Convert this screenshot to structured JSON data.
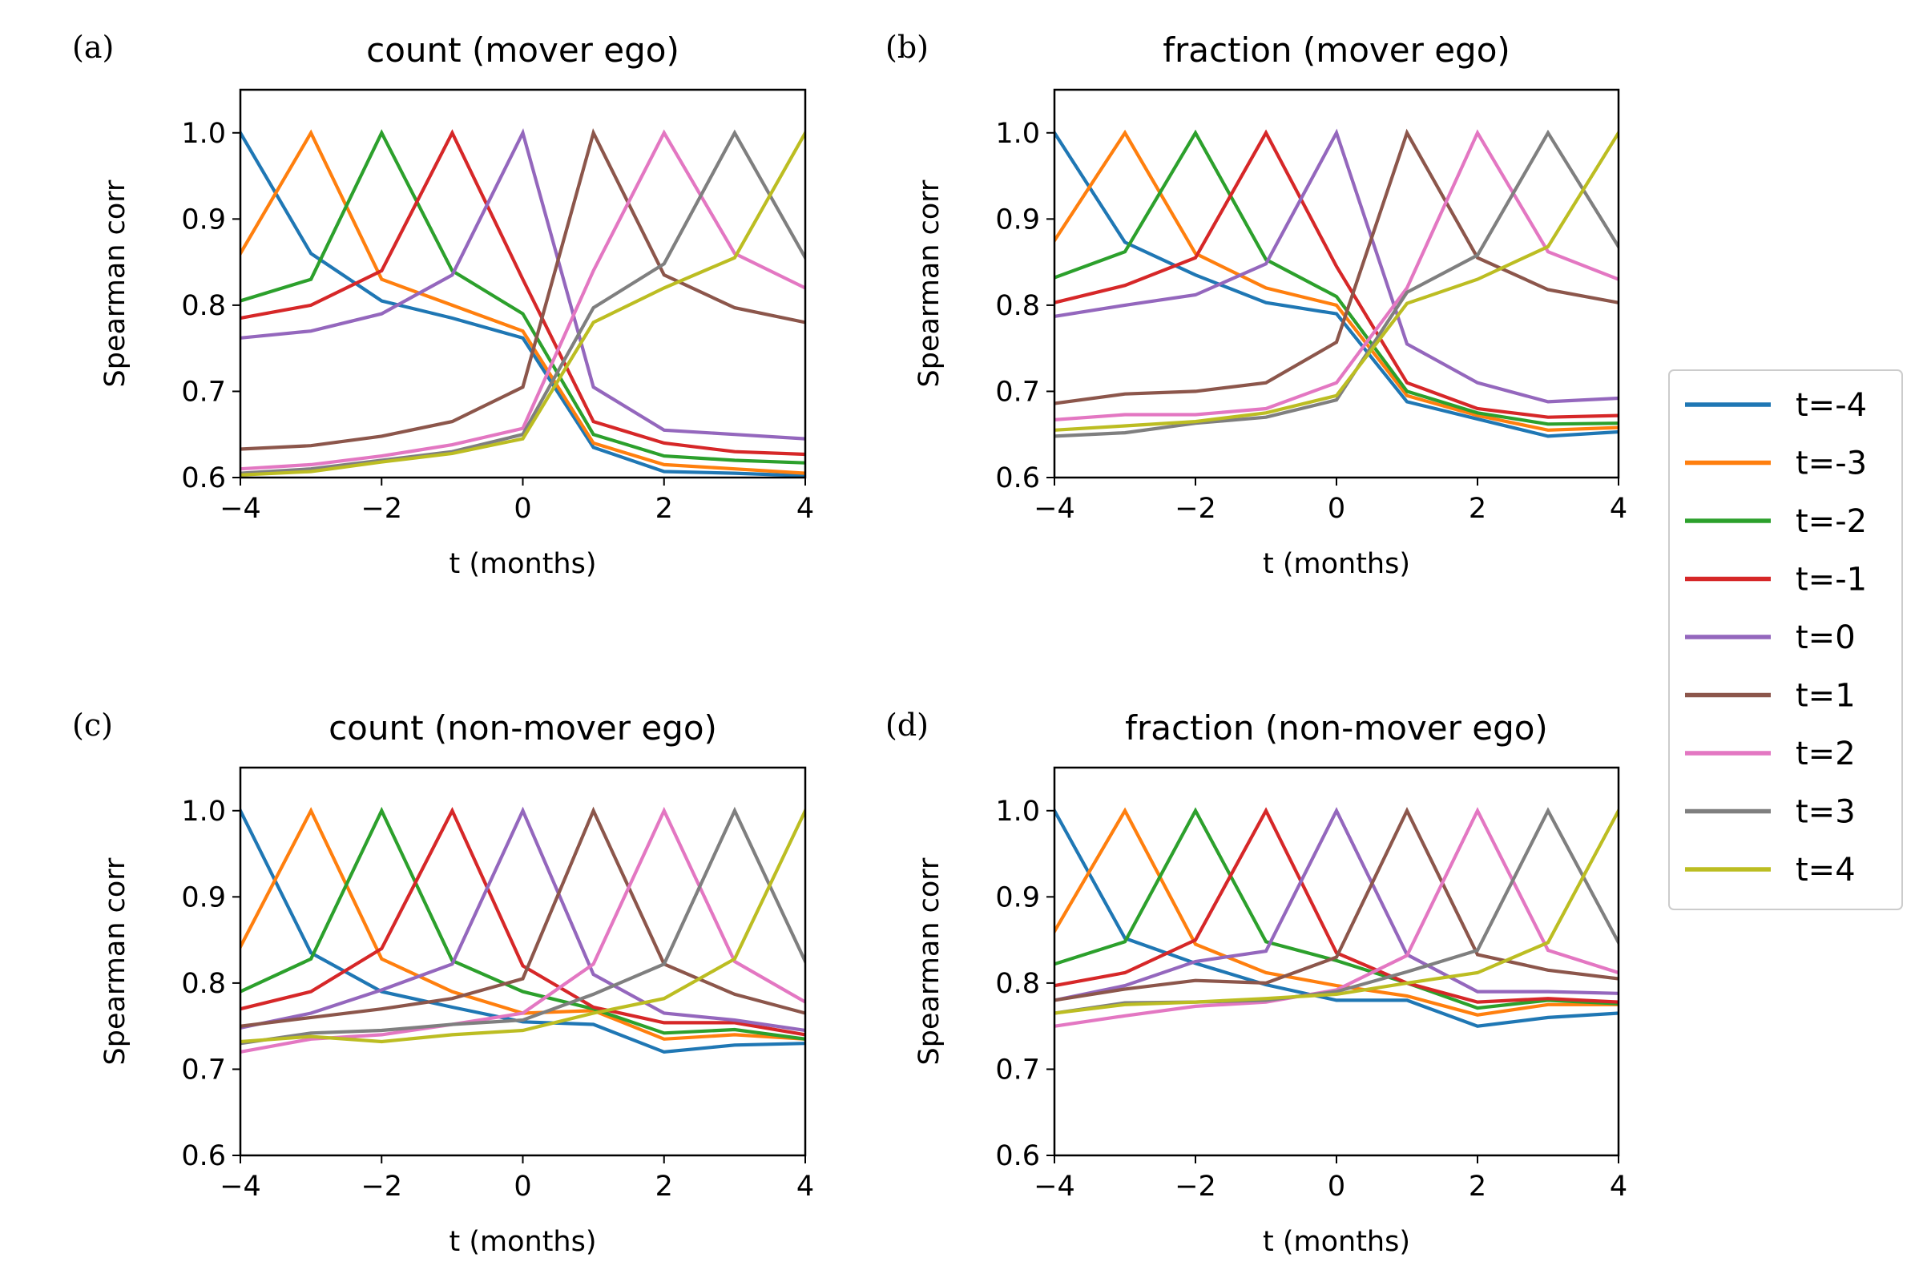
{
  "chart_data": {
    "type": "line",
    "colors": [
      "#1f77b4",
      "#ff7f0e",
      "#2ca02c",
      "#d62728",
      "#9467bd",
      "#8c564b",
      "#e377c2",
      "#7f7f7f",
      "#bcbd22"
    ],
    "legend": {
      "placement": "right",
      "entries": [
        "t=-4",
        "t=-3",
        "t=-2",
        "t=-1",
        "t=0",
        "t=1",
        "t=2",
        "t=3",
        "t=4"
      ]
    },
    "x": [
      -4,
      -3,
      -2,
      -1,
      0,
      1,
      2,
      3,
      4
    ],
    "xlim": [
      -4,
      4
    ],
    "ylim": [
      0.6,
      1.05
    ],
    "xticks": [
      "−4",
      "−2",
      "0",
      "2",
      "4"
    ],
    "xtick_values": [
      -4,
      -2,
      0,
      2,
      4
    ],
    "yticks": [
      "0.6",
      "0.7",
      "0.8",
      "0.9",
      "1.0"
    ],
    "ytick_values": [
      0.6,
      0.7,
      0.8,
      0.9,
      1.0
    ],
    "grid": false,
    "panels": [
      {
        "letter": "(a)",
        "title": "count (mover ego)",
        "xlabel": "t (months)",
        "ylabel": "Spearman corr",
        "series": [
          {
            "name": "t=-4",
            "values": [
              1.0,
              0.86,
              0.805,
              0.785,
              0.762,
              0.635,
              0.607,
              0.605,
              0.602
            ]
          },
          {
            "name": "t=-3",
            "values": [
              0.86,
              1.0,
              0.83,
              0.8,
              0.77,
              0.64,
              0.615,
              0.61,
              0.605
            ]
          },
          {
            "name": "t=-2",
            "values": [
              0.805,
              0.83,
              1.0,
              0.84,
              0.79,
              0.65,
              0.625,
              0.62,
              0.617
            ]
          },
          {
            "name": "t=-1",
            "values": [
              0.785,
              0.8,
              0.84,
              1.0,
              0.83,
              0.665,
              0.64,
              0.63,
              0.627
            ]
          },
          {
            "name": "t=0",
            "values": [
              0.762,
              0.77,
              0.79,
              0.835,
              1.0,
              0.705,
              0.655,
              0.65,
              0.645
            ]
          },
          {
            "name": "t=1",
            "values": [
              0.633,
              0.637,
              0.648,
              0.665,
              0.705,
              1.0,
              0.835,
              0.797,
              0.78
            ]
          },
          {
            "name": "t=2",
            "values": [
              0.61,
              0.615,
              0.625,
              0.638,
              0.657,
              0.84,
              1.0,
              0.86,
              0.82
            ]
          },
          {
            "name": "t=3",
            "values": [
              0.605,
              0.61,
              0.62,
              0.63,
              0.65,
              0.797,
              0.848,
              1.0,
              0.855
            ]
          },
          {
            "name": "t=4",
            "values": [
              0.603,
              0.607,
              0.618,
              0.628,
              0.645,
              0.78,
              0.82,
              0.855,
              1.0
            ]
          }
        ]
      },
      {
        "letter": "(b)",
        "title": "fraction (mover ego)",
        "xlabel": "t (months)",
        "ylabel": "Spearman corr",
        "series": [
          {
            "name": "t=-4",
            "values": [
              1.0,
              0.873,
              0.835,
              0.803,
              0.79,
              0.688,
              0.668,
              0.648,
              0.653
            ]
          },
          {
            "name": "t=-3",
            "values": [
              0.875,
              1.0,
              0.86,
              0.82,
              0.8,
              0.695,
              0.672,
              0.655,
              0.658
            ]
          },
          {
            "name": "t=-2",
            "values": [
              0.832,
              0.862,
              1.0,
              0.853,
              0.81,
              0.7,
              0.675,
              0.662,
              0.663
            ]
          },
          {
            "name": "t=-1",
            "values": [
              0.803,
              0.823,
              0.855,
              1.0,
              0.845,
              0.71,
              0.68,
              0.67,
              0.672
            ]
          },
          {
            "name": "t=0",
            "values": [
              0.787,
              0.8,
              0.812,
              0.848,
              1.0,
              0.755,
              0.71,
              0.688,
              0.692
            ]
          },
          {
            "name": "t=1",
            "values": [
              0.686,
              0.697,
              0.7,
              0.71,
              0.757,
              1.0,
              0.855,
              0.818,
              0.803
            ]
          },
          {
            "name": "t=2",
            "values": [
              0.667,
              0.673,
              0.673,
              0.68,
              0.71,
              0.82,
              1.0,
              0.862,
              0.83
            ]
          },
          {
            "name": "t=3",
            "values": [
              0.648,
              0.652,
              0.663,
              0.67,
              0.69,
              0.815,
              0.858,
              1.0,
              0.868
            ]
          },
          {
            "name": "t=4",
            "values": [
              0.655,
              0.66,
              0.665,
              0.675,
              0.695,
              0.802,
              0.83,
              0.868,
              1.0
            ]
          }
        ]
      },
      {
        "letter": "(c)",
        "title": "count (non-mover ego)",
        "xlabel": "t (months)",
        "ylabel": "Spearman corr",
        "series": [
          {
            "name": "t=-4",
            "values": [
              1.0,
              0.835,
              0.79,
              0.772,
              0.755,
              0.752,
              0.72,
              0.728,
              0.73
            ]
          },
          {
            "name": "t=-3",
            "values": [
              0.842,
              1.0,
              0.828,
              0.79,
              0.765,
              0.768,
              0.735,
              0.74,
              0.735
            ]
          },
          {
            "name": "t=-2",
            "values": [
              0.79,
              0.828,
              1.0,
              0.826,
              0.79,
              0.77,
              0.742,
              0.746,
              0.735
            ]
          },
          {
            "name": "t=-1",
            "values": [
              0.77,
              0.79,
              0.84,
              1.0,
              0.82,
              0.772,
              0.754,
              0.754,
              0.74
            ]
          },
          {
            "name": "t=0",
            "values": [
              0.748,
              0.765,
              0.792,
              0.822,
              1.0,
              0.81,
              0.765,
              0.757,
              0.745
            ]
          },
          {
            "name": "t=1",
            "values": [
              0.75,
              0.76,
              0.77,
              0.782,
              0.805,
              1.0,
              0.822,
              0.787,
              0.765
            ]
          },
          {
            "name": "t=2",
            "values": [
              0.72,
              0.735,
              0.74,
              0.752,
              0.765,
              0.822,
              1.0,
              0.825,
              0.778
            ]
          },
          {
            "name": "t=3",
            "values": [
              0.73,
              0.742,
              0.745,
              0.752,
              0.757,
              0.787,
              0.822,
              1.0,
              0.825
            ]
          },
          {
            "name": "t=4",
            "values": [
              0.732,
              0.738,
              0.732,
              0.74,
              0.745,
              0.765,
              0.782,
              0.828,
              1.0
            ]
          }
        ]
      },
      {
        "letter": "(d)",
        "title": "fraction (non-mover ego)",
        "xlabel": "t (months)",
        "ylabel": "Spearman corr",
        "series": [
          {
            "name": "t=-4",
            "values": [
              1.0,
              0.852,
              0.823,
              0.798,
              0.78,
              0.78,
              0.75,
              0.76,
              0.765
            ]
          },
          {
            "name": "t=-3",
            "values": [
              0.86,
              1.0,
              0.845,
              0.812,
              0.797,
              0.785,
              0.763,
              0.775,
              0.775
            ]
          },
          {
            "name": "t=-2",
            "values": [
              0.822,
              0.848,
              1.0,
              0.848,
              0.826,
              0.8,
              0.771,
              0.78,
              0.776
            ]
          },
          {
            "name": "t=-1",
            "values": [
              0.797,
              0.812,
              0.85,
              1.0,
              0.835,
              0.8,
              0.778,
              0.782,
              0.778
            ]
          },
          {
            "name": "t=0",
            "values": [
              0.78,
              0.797,
              0.825,
              0.837,
              1.0,
              0.833,
              0.79,
              0.79,
              0.788
            ]
          },
          {
            "name": "t=1",
            "values": [
              0.78,
              0.793,
              0.803,
              0.8,
              0.83,
              1.0,
              0.833,
              0.815,
              0.805
            ]
          },
          {
            "name": "t=2",
            "values": [
              0.75,
              0.762,
              0.773,
              0.778,
              0.792,
              0.832,
              1.0,
              0.838,
              0.812
            ]
          },
          {
            "name": "t=3",
            "values": [
              0.765,
              0.777,
              0.778,
              0.78,
              0.79,
              0.813,
              0.838,
              1.0,
              0.847
            ]
          },
          {
            "name": "t=4",
            "values": [
              0.765,
              0.775,
              0.778,
              0.782,
              0.787,
              0.8,
              0.812,
              0.847,
              1.0
            ]
          }
        ]
      }
    ]
  }
}
